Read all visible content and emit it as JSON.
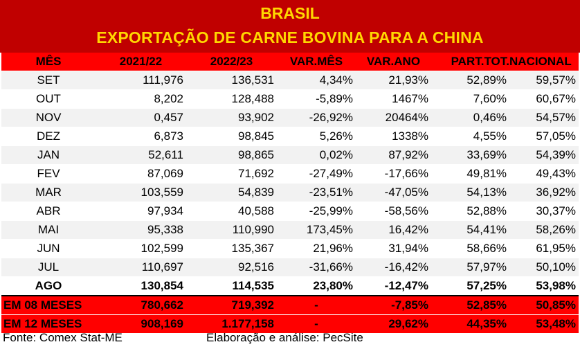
{
  "title": "BRASIL",
  "subtitle": "EXPORTAÇÃO DE CARNE BOVINA PARA A CHINA",
  "headers": [
    "MÊS",
    "2021/22",
    "2022/23",
    "VAR.MÊS",
    "VAR.ANO",
    "PART.TOT.",
    "NACIONAL"
  ],
  "rows": [
    [
      "SET",
      "111,976",
      "136,531",
      "4,34%",
      "21,93%",
      "52,89%",
      "59,57%"
    ],
    [
      "OUT",
      "8,202",
      "128,488",
      "-5,89%",
      "1467%",
      "7,60%",
      "60,67%"
    ],
    [
      "NOV",
      "0,457",
      "93,902",
      "-26,92%",
      "20464%",
      "0,46%",
      "54,57%"
    ],
    [
      "DEZ",
      "6,873",
      "98,845",
      "5,26%",
      "1338%",
      "4,55%",
      "57,05%"
    ],
    [
      "JAN",
      "52,611",
      "98,865",
      "0,02%",
      "87,92%",
      "33,69%",
      "54,39%"
    ],
    [
      "FEV",
      "87,069",
      "71,692",
      "-27,49%",
      "-17,66%",
      "49,81%",
      "49,43%"
    ],
    [
      "MAR",
      "103,559",
      "54,839",
      "-23,51%",
      "-47,05%",
      "54,13%",
      "36,92%"
    ],
    [
      "ABR",
      "97,934",
      "40,588",
      "-25,99%",
      "-58,56%",
      "52,88%",
      "30,37%"
    ],
    [
      "MAI",
      "95,338",
      "110,990",
      "173,45%",
      "16,42%",
      "54,41%",
      "58,26%"
    ],
    [
      "JUN",
      "102,599",
      "135,367",
      "21,96%",
      "31,94%",
      "58,66%",
      "61,95%"
    ],
    [
      "JUL",
      "110,697",
      "92,516",
      "-31,66%",
      "-16,42%",
      "57,97%",
      "50,10%"
    ],
    [
      "AGO",
      "130,854",
      "114,535",
      "23,80%",
      "-12,47%",
      "57,25%",
      "53,98%"
    ]
  ],
  "summary": [
    [
      "EM 08 MESES",
      "780,662",
      "719,392",
      "-",
      "-7,85%",
      "52,85%",
      "50,85%"
    ],
    [
      "EM 12 MESES",
      "908,169",
      "1.177,158",
      "-",
      "29,62%",
      "44,35%",
      "53,48%"
    ]
  ],
  "footer": {
    "source": "Fonte: Comex Stat-ME",
    "credit": "Elaboração e análise: PecSite"
  },
  "colors": {
    "title_bg": "#c00000",
    "title_text": "#ffd700",
    "header_bg": "#ff0000",
    "stripe": "#f2f2f2"
  }
}
